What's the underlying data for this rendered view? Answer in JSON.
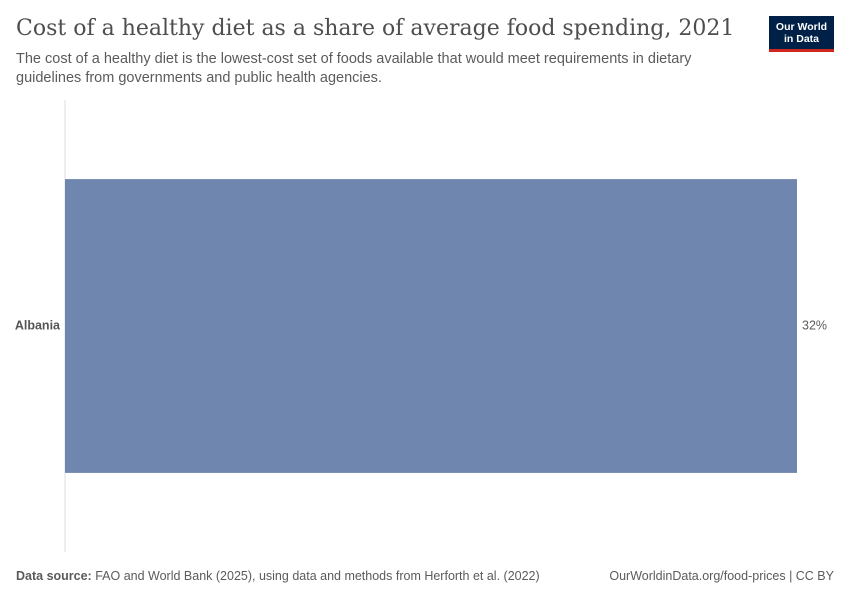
{
  "header": {
    "title": "Cost of a healthy diet as a share of average food spending, 2021",
    "subtitle": "The cost of a healthy diet is the lowest-cost set of foods available that would meet requirements in dietary guidelines from governments and public health agencies."
  },
  "logo": {
    "line1": "Our World",
    "line2": "in Data"
  },
  "footer": {
    "source_label": "Data source:",
    "source_text": "FAO and World Bank (2025), using data and methods from Herforth et al. (2022)",
    "link": "OurWorldinData.org/food-prices | CC BY"
  },
  "colors": {
    "bar": "#6f87af",
    "axis": "#dddddd",
    "label": "#555555",
    "value": "#5b5b5b"
  },
  "chart_data": {
    "type": "bar",
    "orientation": "horizontal",
    "categories": [
      "Albania"
    ],
    "values": [
      32
    ],
    "value_labels": [
      "32%"
    ],
    "unit": "%",
    "xlim": [
      0,
      32
    ]
  }
}
